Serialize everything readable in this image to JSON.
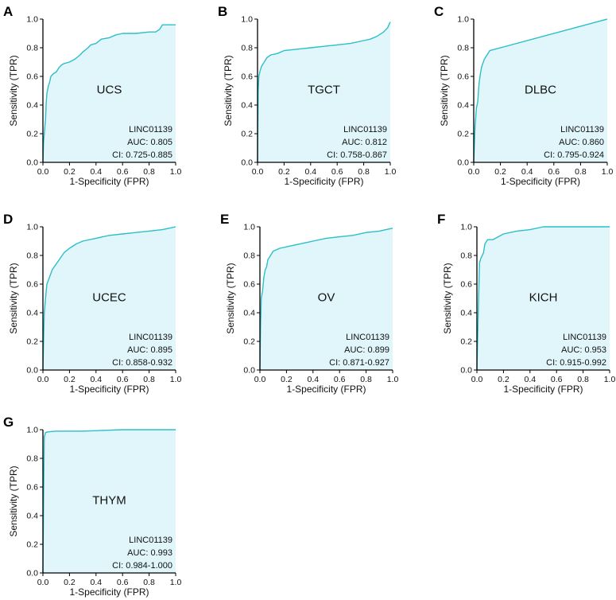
{
  "figure": {
    "axis_label_x": "1-Specificity (FPR)",
    "axis_label_y": "Sensitivity (TPR)",
    "x_ticks": [
      "0.0",
      "0.2",
      "0.4",
      "0.6",
      "0.8",
      "1.0"
    ],
    "y_ticks": [
      "0.0",
      "0.2",
      "0.4",
      "0.6",
      "0.8",
      "1.0"
    ],
    "colors": {
      "curve": "#2bbfc9",
      "fill": "#e1f6fb",
      "axis": "#000000",
      "text": "#111111"
    }
  },
  "chart_data": [
    {
      "type": "line",
      "panel_letter": "A",
      "cancer": "UCS",
      "gene": "LINC01139",
      "auc": "AUC: 0.805",
      "ci": "CI: 0.725-0.885",
      "xlabel": "1-Specificity (FPR)",
      "ylabel": "Sensitivity (TPR)",
      "xlim": [
        0,
        1
      ],
      "ylim": [
        0,
        1
      ],
      "x": [
        0,
        0.005,
        0.01,
        0.02,
        0.025,
        0.03,
        0.04,
        0.05,
        0.06,
        0.08,
        0.1,
        0.12,
        0.14,
        0.16,
        0.2,
        0.24,
        0.28,
        0.3,
        0.34,
        0.36,
        0.4,
        0.44,
        0.5,
        0.55,
        0.6,
        0.7,
        0.8,
        0.85,
        0.88,
        0.9,
        0.95,
        1.0
      ],
      "y": [
        0,
        0.14,
        0.2,
        0.3,
        0.42,
        0.48,
        0.53,
        0.56,
        0.6,
        0.62,
        0.63,
        0.66,
        0.68,
        0.69,
        0.7,
        0.72,
        0.75,
        0.77,
        0.8,
        0.82,
        0.83,
        0.86,
        0.87,
        0.89,
        0.9,
        0.9,
        0.91,
        0.91,
        0.93,
        0.96,
        0.96,
        0.96
      ]
    },
    {
      "type": "line",
      "panel_letter": "B",
      "cancer": "TGCT",
      "gene": "LINC01139",
      "auc": "AUC: 0.812",
      "ci": "CI: 0.758-0.867",
      "xlabel": "1-Specificity (FPR)",
      "ylabel": "Sensitivity (TPR)",
      "xlim": [
        0,
        1
      ],
      "ylim": [
        0,
        1
      ],
      "x": [
        0,
        0.005,
        0.01,
        0.02,
        0.03,
        0.05,
        0.07,
        0.1,
        0.15,
        0.2,
        0.3,
        0.4,
        0.5,
        0.6,
        0.7,
        0.8,
        0.85,
        0.9,
        0.95,
        0.98,
        1.0
      ],
      "y": [
        0,
        0.5,
        0.6,
        0.64,
        0.67,
        0.7,
        0.73,
        0.75,
        0.76,
        0.78,
        0.79,
        0.8,
        0.81,
        0.82,
        0.83,
        0.85,
        0.86,
        0.88,
        0.91,
        0.94,
        0.98
      ]
    },
    {
      "type": "line",
      "panel_letter": "C",
      "cancer": "DLBC",
      "gene": "LINC01139",
      "auc": "AUC: 0.860",
      "ci": "CI: 0.795-0.924",
      "xlabel": "1-Specificity (FPR)",
      "ylabel": "Sensitivity (TPR)",
      "xlim": [
        0,
        1
      ],
      "ylim": [
        0,
        1
      ],
      "x": [
        0,
        0.01,
        0.02,
        0.03,
        0.04,
        0.05,
        0.06,
        0.08,
        0.12,
        1.0
      ],
      "y": [
        0,
        0.25,
        0.38,
        0.42,
        0.55,
        0.62,
        0.67,
        0.72,
        0.78,
        1.0
      ]
    },
    {
      "type": "line",
      "panel_letter": "D",
      "cancer": "UCEC",
      "gene": "LINC01139",
      "auc": "AUC: 0.895",
      "ci": "CI: 0.858-0.932",
      "xlabel": "1-Specificity (FPR)",
      "ylabel": "Sensitivity (TPR)",
      "xlim": [
        0,
        1
      ],
      "ylim": [
        0,
        1
      ],
      "x": [
        0,
        0.005,
        0.01,
        0.02,
        0.03,
        0.05,
        0.07,
        0.1,
        0.13,
        0.16,
        0.2,
        0.25,
        0.3,
        0.4,
        0.5,
        0.6,
        0.7,
        0.8,
        0.9,
        0.95,
        1.0
      ],
      "y": [
        0,
        0.2,
        0.4,
        0.5,
        0.6,
        0.65,
        0.7,
        0.74,
        0.78,
        0.82,
        0.85,
        0.88,
        0.9,
        0.92,
        0.94,
        0.95,
        0.96,
        0.97,
        0.98,
        0.99,
        1.0
      ]
    },
    {
      "type": "line",
      "panel_letter": "E",
      "cancer": "OV",
      "gene": "LINC01139",
      "auc": "AUC: 0.899",
      "ci": "CI: 0.871-0.927",
      "xlabel": "1-Specificity (FPR)",
      "ylabel": "Sensitivity (TPR)",
      "xlim": [
        0,
        1
      ],
      "ylim": [
        0,
        1
      ],
      "x": [
        0,
        0.005,
        0.01,
        0.02,
        0.03,
        0.04,
        0.05,
        0.06,
        0.08,
        0.1,
        0.15,
        0.2,
        0.3,
        0.4,
        0.5,
        0.6,
        0.7,
        0.8,
        0.9,
        0.95,
        1.0
      ],
      "y": [
        0,
        0.3,
        0.5,
        0.55,
        0.65,
        0.7,
        0.72,
        0.77,
        0.8,
        0.83,
        0.85,
        0.86,
        0.88,
        0.9,
        0.92,
        0.93,
        0.94,
        0.96,
        0.97,
        0.98,
        0.99
      ]
    },
    {
      "type": "line",
      "panel_letter": "F",
      "cancer": "KICH",
      "gene": "LINC01139",
      "auc": "AUC: 0.953",
      "ci": "CI: 0.915-0.992",
      "xlabel": "1-Specificity (FPR)",
      "ylabel": "Sensitivity (TPR)",
      "xlim": [
        0,
        1
      ],
      "ylim": [
        0,
        1
      ],
      "x": [
        0,
        0.01,
        0.02,
        0.03,
        0.05,
        0.06,
        0.08,
        0.12,
        0.2,
        0.3,
        0.4,
        0.5,
        1.0
      ],
      "y": [
        0,
        0.4,
        0.75,
        0.78,
        0.82,
        0.88,
        0.91,
        0.91,
        0.95,
        0.97,
        0.98,
        1.0,
        1.0
      ]
    },
    {
      "type": "line",
      "panel_letter": "G",
      "cancer": "THYM",
      "gene": "LINC01139",
      "auc": "AUC: 0.993",
      "ci": "CI: 0.984-1.000",
      "xlabel": "1-Specificity (FPR)",
      "ylabel": "Sensitivity (TPR)",
      "xlim": [
        0,
        1
      ],
      "ylim": [
        0,
        1
      ],
      "x": [
        0,
        0.005,
        0.01,
        0.02,
        0.04,
        0.1,
        0.3,
        0.6,
        1.0
      ],
      "y": [
        0,
        0.5,
        0.95,
        0.98,
        0.985,
        0.99,
        0.99,
        1.0,
        1.0
      ]
    }
  ]
}
